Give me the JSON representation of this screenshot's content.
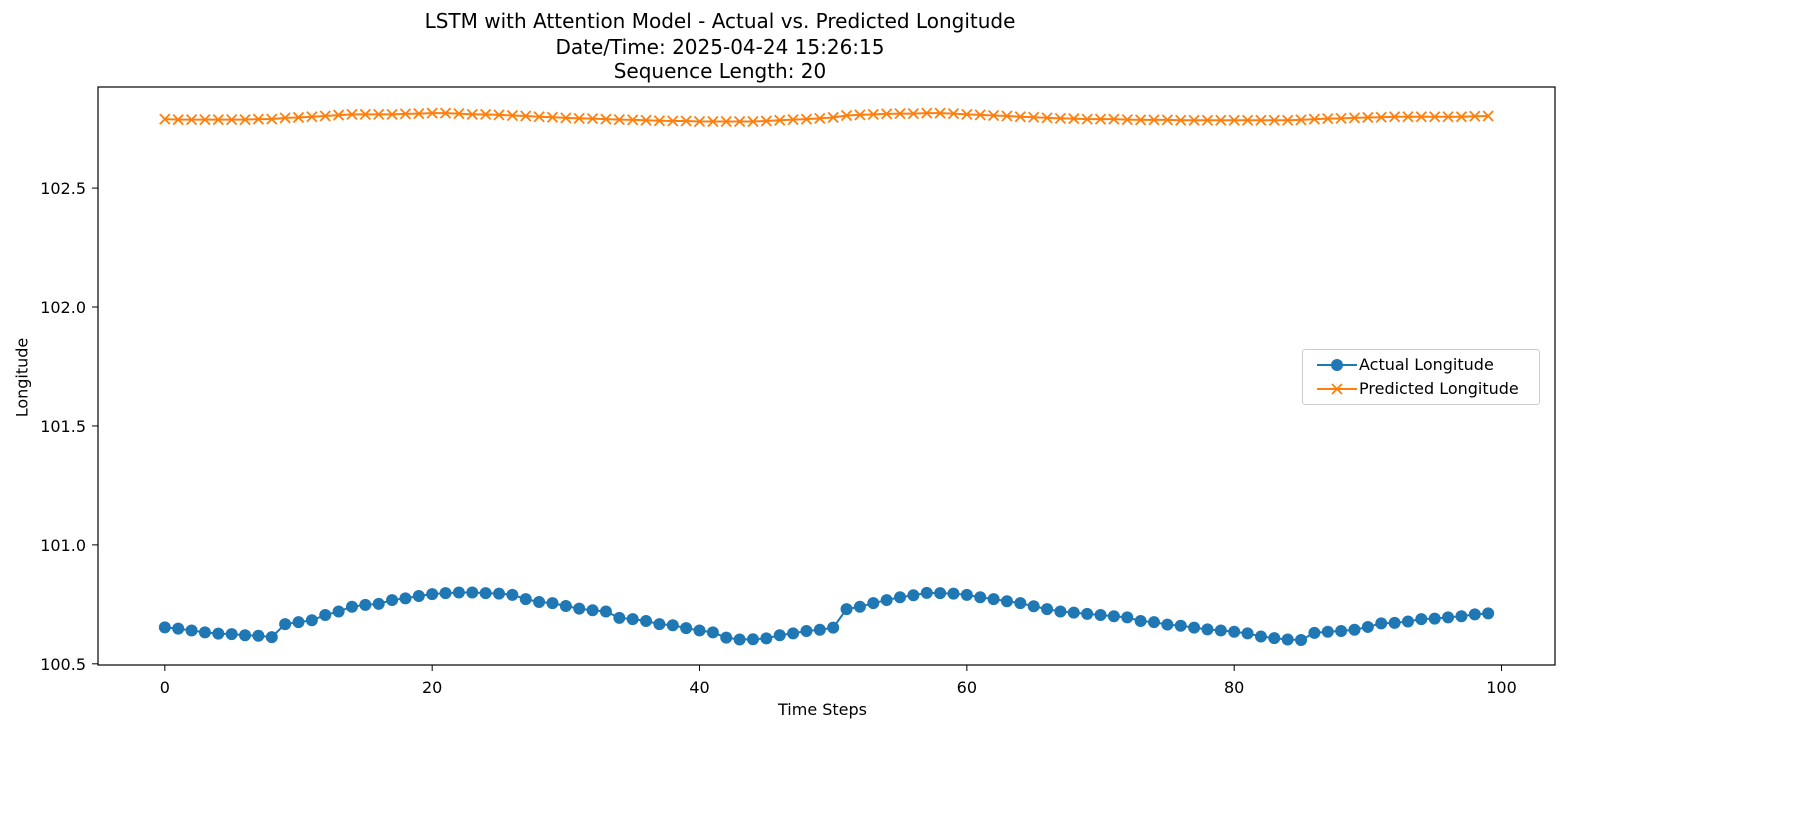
{
  "chart_data": {
    "type": "line",
    "title": "LSTM with Attention Model - Actual vs. Predicted Longitude",
    "subtitle_lines": [
      "Date/Time: 2025-04-24 15:26:15",
      "Sequence Length: 20"
    ],
    "xlabel": "Time Steps",
    "ylabel": "Longitude",
    "xlim": [
      -5,
      104
    ],
    "ylim": [
      100.495,
      102.925
    ],
    "x_ticks": [
      0,
      20,
      40,
      60,
      80,
      100
    ],
    "y_ticks": [
      100.5,
      101.0,
      101.5,
      102.0,
      102.5
    ],
    "x_tick_labels": [
      "0",
      "20",
      "40",
      "60",
      "80",
      "100"
    ],
    "y_tick_labels": [
      "100.5",
      "101.0",
      "101.5",
      "102.0",
      "102.5"
    ],
    "grid": false,
    "legend_position": "center-right",
    "x": [
      0,
      1,
      2,
      3,
      4,
      5,
      6,
      7,
      8,
      9,
      10,
      11,
      12,
      13,
      14,
      15,
      16,
      17,
      18,
      19,
      20,
      21,
      22,
      23,
      24,
      25,
      26,
      27,
      28,
      29,
      30,
      31,
      32,
      33,
      34,
      35,
      36,
      37,
      38,
      39,
      40,
      41,
      42,
      43,
      44,
      45,
      46,
      47,
      48,
      49,
      50,
      51,
      52,
      53,
      54,
      55,
      56,
      57,
      58,
      59,
      60,
      61,
      62,
      63,
      64,
      65,
      66,
      67,
      68,
      69,
      70,
      71,
      72,
      73,
      74,
      75,
      76,
      77,
      78,
      79,
      80,
      81,
      82,
      83,
      84,
      85,
      86,
      87,
      88,
      89,
      90,
      91,
      92,
      93,
      94,
      95,
      96,
      97,
      98,
      99
    ],
    "series": [
      {
        "name": "Actual Longitude",
        "color": "#1f77b4",
        "marker": "circle",
        "values": [
          100.653,
          100.648,
          100.64,
          100.632,
          100.627,
          100.625,
          100.62,
          100.618,
          100.612,
          100.667,
          100.675,
          100.683,
          100.705,
          100.72,
          100.74,
          100.748,
          100.752,
          100.768,
          100.775,
          100.785,
          100.793,
          100.797,
          100.8,
          100.8,
          100.797,
          100.795,
          100.79,
          100.772,
          100.76,
          100.755,
          100.743,
          100.732,
          100.725,
          100.72,
          100.693,
          100.688,
          100.68,
          100.667,
          100.662,
          100.65,
          100.64,
          100.632,
          100.61,
          100.602,
          100.603,
          100.607,
          100.62,
          100.628,
          100.638,
          100.643,
          100.652,
          100.73,
          100.74,
          100.755,
          100.768,
          100.78,
          100.788,
          100.798,
          100.797,
          100.795,
          100.79,
          100.78,
          100.772,
          100.763,
          100.755,
          100.742,
          100.73,
          100.72,
          100.715,
          100.71,
          100.705,
          100.7,
          100.695,
          100.68,
          100.675,
          100.665,
          100.66,
          100.652,
          100.645,
          100.64,
          100.635,
          100.628,
          100.615,
          100.608,
          100.602,
          100.6,
          100.63,
          100.635,
          100.638,
          100.643,
          100.655,
          100.67,
          100.672,
          100.678,
          100.688,
          100.69,
          100.695,
          100.7,
          100.708,
          100.712
        ]
      },
      {
        "name": "Predicted Longitude",
        "color": "#ff7f0e",
        "marker": "x",
        "values": [
          102.79,
          102.788,
          102.788,
          102.788,
          102.788,
          102.788,
          102.788,
          102.79,
          102.79,
          102.795,
          102.797,
          102.8,
          102.803,
          102.807,
          102.81,
          102.81,
          102.81,
          102.81,
          102.812,
          102.813,
          102.815,
          102.815,
          102.813,
          102.81,
          102.81,
          102.808,
          102.805,
          102.803,
          102.8,
          102.798,
          102.795,
          102.793,
          102.792,
          102.79,
          102.788,
          102.787,
          102.785,
          102.783,
          102.782,
          102.782,
          102.78,
          102.78,
          102.78,
          102.78,
          102.78,
          102.782,
          102.785,
          102.788,
          102.79,
          102.793,
          102.797,
          102.805,
          102.808,
          102.81,
          102.812,
          102.813,
          102.813,
          102.815,
          102.815,
          102.813,
          102.81,
          102.808,
          102.805,
          102.803,
          102.8,
          102.798,
          102.795,
          102.793,
          102.792,
          102.79,
          102.79,
          102.79,
          102.788,
          102.787,
          102.787,
          102.787,
          102.785,
          102.785,
          102.785,
          102.785,
          102.785,
          102.785,
          102.785,
          102.785,
          102.785,
          102.787,
          102.79,
          102.792,
          102.793,
          102.795,
          102.797,
          102.798,
          102.8,
          102.8,
          102.8,
          102.8,
          102.8,
          102.8,
          102.802,
          102.803
        ]
      }
    ]
  }
}
